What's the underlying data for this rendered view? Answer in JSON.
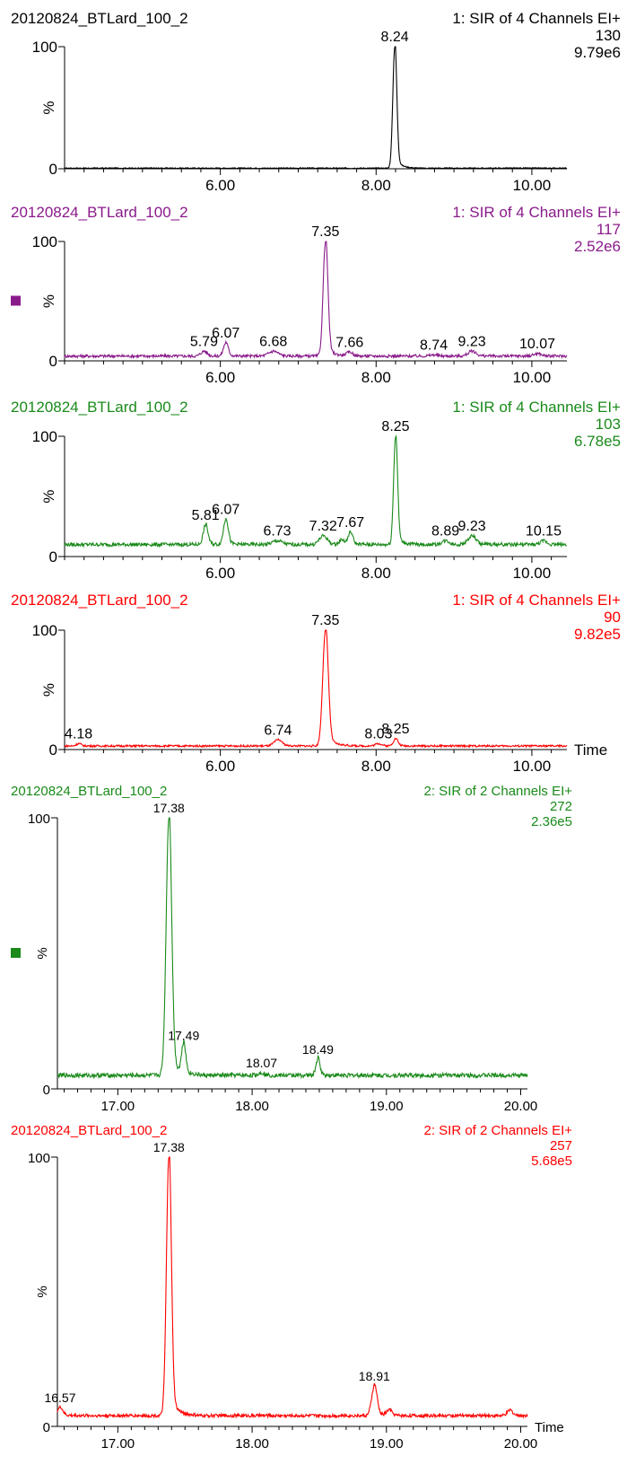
{
  "x_axis_label": "Time",
  "y_axis_label": "%",
  "chart_data": [
    {
      "type": "line",
      "sample": "20120824_BTLard_100_2",
      "function": "1: SIR of 4 Channels EI+",
      "mass": "130",
      "intensity": "9.79e6",
      "color": "#000000",
      "xlim": [
        4.0,
        10.45
      ],
      "ylim": [
        0,
        100
      ],
      "x_ticks": [
        6.0,
        8.0,
        10.0
      ],
      "x_tick_labels": [
        "6.00",
        "8.00",
        "10.00"
      ],
      "y_tick_labels": [
        "0",
        "100"
      ],
      "baseline": 0.5,
      "noise": 0.4,
      "peaks": [
        {
          "rt": 8.24,
          "height": 100,
          "width": 0.025,
          "label": "8.24"
        }
      ],
      "show_time_label": false
    },
    {
      "type": "line",
      "sample": "20120824_BTLard_100_2",
      "function": "1: SIR of 4 Channels EI+",
      "mass": "117",
      "intensity": "2.52e6",
      "color": "#8a1a8a",
      "marker_square": true,
      "xlim": [
        4.0,
        10.45
      ],
      "ylim": [
        0,
        100
      ],
      "x_ticks": [
        6.0,
        8.0,
        10.0
      ],
      "x_tick_labels": [
        "6.00",
        "8.00",
        "10.00"
      ],
      "y_tick_labels": [
        "0",
        "100"
      ],
      "baseline": 4,
      "noise": 1.2,
      "peaks": [
        {
          "rt": 5.79,
          "height": 8,
          "width": 0.04,
          "label": "5.79"
        },
        {
          "rt": 6.07,
          "height": 15,
          "width": 0.03,
          "label": "6.07"
        },
        {
          "rt": 6.68,
          "height": 8,
          "width": 0.06,
          "label": "6.68"
        },
        {
          "rt": 7.35,
          "height": 100,
          "width": 0.03,
          "label": "7.35"
        },
        {
          "rt": 7.66,
          "height": 7,
          "width": 0.04,
          "label": "7.66"
        },
        {
          "rt": 8.74,
          "height": 5,
          "width": 0.05,
          "label": "8.74"
        },
        {
          "rt": 9.23,
          "height": 8,
          "width": 0.05,
          "label": "9.23"
        },
        {
          "rt": 10.07,
          "height": 6,
          "width": 0.05,
          "label": "10.07"
        }
      ],
      "show_time_label": false
    },
    {
      "type": "line",
      "sample": "20120824_BTLard_100_2",
      "function": "1: SIR of 4 Channels EI+",
      "mass": "103",
      "intensity": "6.78e5",
      "color": "#1a8a1a",
      "xlim": [
        4.0,
        10.45
      ],
      "ylim": [
        0,
        100
      ],
      "x_ticks": [
        6.0,
        8.0,
        10.0
      ],
      "x_tick_labels": [
        "6.00",
        "8.00",
        "10.00"
      ],
      "y_tick_labels": [
        "0",
        "100"
      ],
      "baseline": 10,
      "noise": 1.5,
      "peaks": [
        {
          "rt": 5.81,
          "height": 26,
          "width": 0.03,
          "label": "5.81"
        },
        {
          "rt": 6.07,
          "height": 31,
          "width": 0.03,
          "label": "6.07"
        },
        {
          "rt": 6.73,
          "height": 13,
          "width": 0.06,
          "label": "6.73"
        },
        {
          "rt": 7.32,
          "height": 17,
          "width": 0.05,
          "label": "7.32"
        },
        {
          "rt": 7.56,
          "height": 14,
          "width": 0.03,
          "label": ""
        },
        {
          "rt": 7.67,
          "height": 20,
          "width": 0.03,
          "label": "7.67"
        },
        {
          "rt": 8.25,
          "height": 100,
          "width": 0.025,
          "label": "8.25"
        },
        {
          "rt": 8.89,
          "height": 13,
          "width": 0.05,
          "label": "8.89"
        },
        {
          "rt": 9.23,
          "height": 17,
          "width": 0.05,
          "label": "9.23"
        },
        {
          "rt": 10.15,
          "height": 13,
          "width": 0.04,
          "label": "10.15"
        }
      ],
      "show_time_label": false
    },
    {
      "type": "line",
      "sample": "20120824_BTLard_100_2",
      "function": "1: SIR of 4 Channels EI+",
      "mass": "90",
      "intensity": "9.82e5",
      "color": "#ff0000",
      "xlim": [
        4.0,
        10.45
      ],
      "ylim": [
        0,
        100
      ],
      "x_ticks": [
        6.0,
        8.0,
        10.0
      ],
      "x_tick_labels": [
        "6.00",
        "8.00",
        "10.00"
      ],
      "y_tick_labels": [
        "0",
        "100"
      ],
      "baseline": 3,
      "noise": 0.8,
      "peaks": [
        {
          "rt": 4.18,
          "height": 5,
          "width": 0.03,
          "label": "4.18"
        },
        {
          "rt": 6.74,
          "height": 8,
          "width": 0.05,
          "label": "6.74"
        },
        {
          "rt": 7.35,
          "height": 100,
          "width": 0.035,
          "label": "7.35"
        },
        {
          "rt": 8.03,
          "height": 5,
          "width": 0.04,
          "label": "8.03"
        },
        {
          "rt": 8.25,
          "height": 9,
          "width": 0.03,
          "label": "8.25"
        }
      ],
      "show_time_label": true
    },
    {
      "type": "line",
      "sample": "20120824_BTLard_100_2",
      "function": "2: SIR of 2 Channels EI+",
      "mass": "272",
      "intensity": "2.36e5",
      "color": "#1a8a1a",
      "marker_square": true,
      "xlim": [
        16.55,
        20.05
      ],
      "ylim": [
        0,
        100
      ],
      "x_ticks": [
        17.0,
        18.0,
        19.0,
        20.0
      ],
      "x_tick_labels": [
        "17.00",
        "18.00",
        "19.00",
        "20.00"
      ],
      "y_tick_labels": [
        "0",
        "100"
      ],
      "baseline": 5,
      "noise": 0.8,
      "peaks": [
        {
          "rt": 17.38,
          "height": 100,
          "width": 0.02,
          "label": "17.38"
        },
        {
          "rt": 17.49,
          "height": 16,
          "width": 0.015,
          "label": "17.49"
        },
        {
          "rt": 18.07,
          "height": 6,
          "width": 0.02,
          "label": "18.07"
        },
        {
          "rt": 18.49,
          "height": 11,
          "width": 0.015,
          "label": "18.49"
        }
      ],
      "show_time_label": false
    },
    {
      "type": "line",
      "sample": "20120824_BTLard_100_2",
      "function": "2: SIR of 2 Channels EI+",
      "mass": "257",
      "intensity": "5.68e5",
      "color": "#ff0000",
      "xlim": [
        16.55,
        20.05
      ],
      "ylim": [
        0,
        100
      ],
      "x_ticks": [
        17.0,
        18.0,
        19.0,
        20.0
      ],
      "x_tick_labels": [
        "17.00",
        "18.00",
        "19.00",
        "20.00"
      ],
      "y_tick_labels": [
        "0",
        "100"
      ],
      "baseline": 4,
      "noise": 0.6,
      "peaks": [
        {
          "rt": 16.57,
          "height": 7,
          "width": 0.02,
          "label": "16.57"
        },
        {
          "rt": 17.38,
          "height": 100,
          "width": 0.018,
          "label": "17.38"
        },
        {
          "rt": 18.91,
          "height": 15,
          "width": 0.02,
          "label": "18.91"
        },
        {
          "rt": 19.02,
          "height": 6,
          "width": 0.02,
          "label": ""
        },
        {
          "rt": 19.92,
          "height": 6,
          "width": 0.02,
          "label": ""
        }
      ],
      "show_time_label": true
    }
  ]
}
